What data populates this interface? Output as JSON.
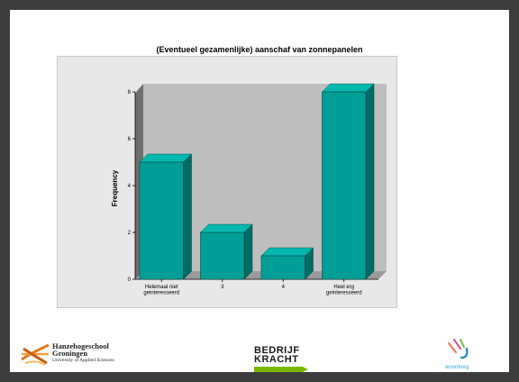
{
  "slide": {
    "logos": {
      "hanze": {
        "line1": "Hanzehogeschool",
        "line2": "Groningen",
        "line3": "University of Applied Sciences"
      },
      "bedrijfskracht": {
        "line1": "BEDRIJF",
        "line2": "KRACHT"
      },
      "woonborg": {
        "name": "woonborg"
      }
    }
  },
  "chart_data": {
    "type": "bar",
    "title": "(Eventueel gezamenlijke) aanschaf van zonnepanelen",
    "xlabel": "",
    "ylabel": "Frequency",
    "categories": [
      [
        "Helemaal niet",
        "geinteresseerd"
      ],
      [
        "3"
      ],
      [
        "4"
      ],
      [
        "Heel erg",
        "geinteresseerd"
      ]
    ],
    "values": [
      5,
      2,
      1,
      8
    ],
    "ylim": [
      0,
      8
    ],
    "yticks": [
      0,
      2,
      4,
      6,
      8
    ],
    "grid": false,
    "legend": "none",
    "bar_color": "#009e96",
    "bar_side_color": "#006b66",
    "bar_top_color": "#00b8ae",
    "plot_background": "#bebebe"
  }
}
